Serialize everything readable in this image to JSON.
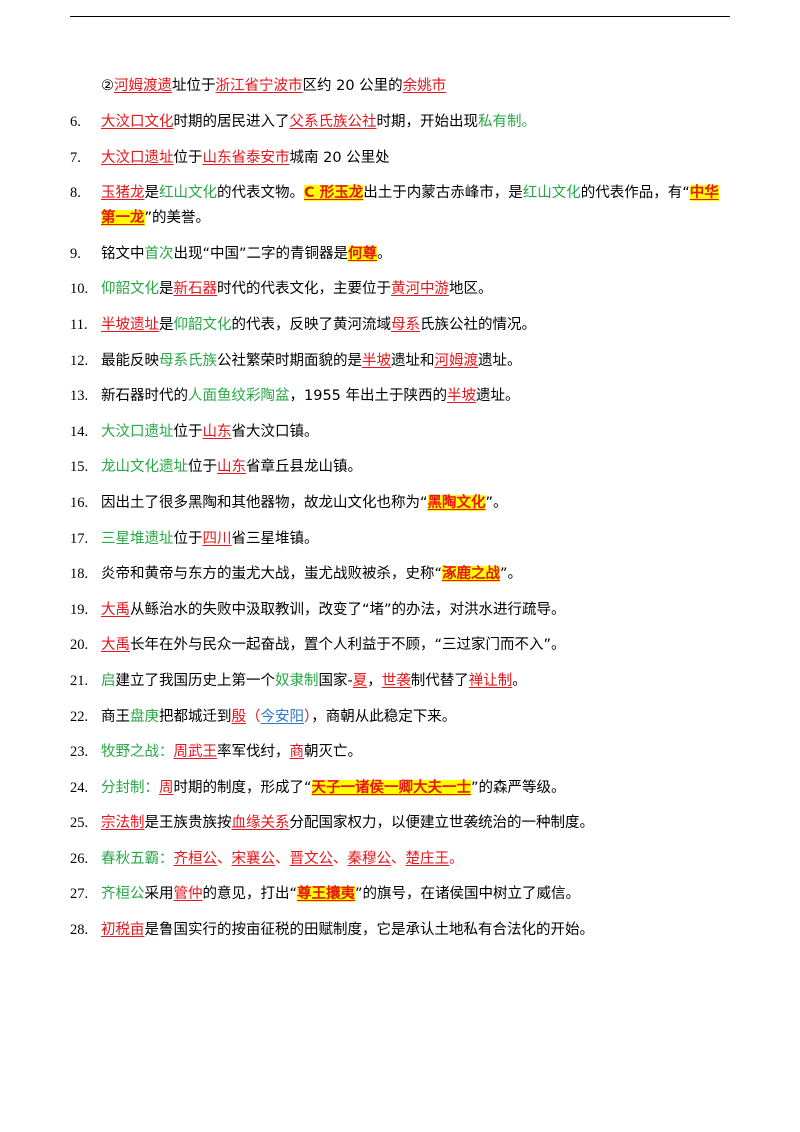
{
  "items": [
    {
      "num": "",
      "segs": [
        {
          "t": "②",
          "s": ""
        },
        {
          "t": "河姆渡遗",
          "s": "ru"
        },
        {
          "t": "址位于",
          "s": ""
        },
        {
          "t": "浙江省宁波市",
          "s": "ru"
        },
        {
          "t": "区约 20 公里的",
          "s": ""
        },
        {
          "t": "余姚市",
          "s": "ru"
        }
      ]
    },
    {
      "num": "6.",
      "segs": [
        {
          "t": "大汶口文化",
          "s": "ru"
        },
        {
          "t": "时期的居民进入了",
          "s": ""
        },
        {
          "t": "父系氏族公社",
          "s": "ru"
        },
        {
          "t": "时期，开始出现",
          "s": ""
        },
        {
          "t": "私有制",
          "s": "g"
        },
        {
          "t": "。",
          "s": "g"
        }
      ]
    },
    {
      "num": "7.",
      "segs": [
        {
          "t": "大汶口遗址",
          "s": "ru"
        },
        {
          "t": "位于",
          "s": ""
        },
        {
          "t": "山东省泰安市",
          "s": "ru"
        },
        {
          "t": "城南 20 公里处",
          "s": ""
        }
      ]
    },
    {
      "num": "8.",
      "wrap": true,
      "segs": [
        {
          "t": "玉猪龙",
          "s": "ru"
        },
        {
          "t": "是",
          "s": ""
        },
        {
          "t": "红山文化",
          "s": "g"
        },
        {
          "t": "的代表文物。",
          "s": ""
        },
        {
          "t": "C 形玉龙",
          "s": "hl"
        },
        {
          "t": "出土于内蒙古赤峰市，是",
          "s": ""
        },
        {
          "t": "红山文化",
          "s": "g"
        },
        {
          "t": "的代表作品，有“",
          "s": ""
        },
        {
          "t": "中华第一龙",
          "s": "hl"
        },
        {
          "t": "”的美誉。",
          "s": ""
        }
      ]
    },
    {
      "num": "9.",
      "segs": [
        {
          "t": "铭文中",
          "s": ""
        },
        {
          "t": "首次",
          "s": "g"
        },
        {
          "t": "出现“中国”二字的青铜器是",
          "s": ""
        },
        {
          "t": "何尊",
          "s": "hl"
        },
        {
          "t": "。",
          "s": ""
        }
      ]
    },
    {
      "num": "10.",
      "segs": [
        {
          "t": "仰韶文化",
          "s": "g"
        },
        {
          "t": "是",
          "s": ""
        },
        {
          "t": "新石器",
          "s": "ru"
        },
        {
          "t": "时代的代表文化，主要位于",
          "s": ""
        },
        {
          "t": "黄河中游",
          "s": "ru"
        },
        {
          "t": "地区。",
          "s": ""
        }
      ]
    },
    {
      "num": "11.",
      "segs": [
        {
          "t": "半坡遗址",
          "s": "ru"
        },
        {
          "t": "是",
          "s": ""
        },
        {
          "t": "仰韶文化",
          "s": "g"
        },
        {
          "t": "的代表，反映了黄河流域",
          "s": ""
        },
        {
          "t": "母系",
          "s": "ru"
        },
        {
          "t": "氏族公社的情况。",
          "s": ""
        }
      ]
    },
    {
      "num": "12.",
      "segs": [
        {
          "t": "最能反映",
          "s": ""
        },
        {
          "t": "母系氏族",
          "s": "g"
        },
        {
          "t": "公社繁荣时期面貌的是",
          "s": ""
        },
        {
          "t": "半坡",
          "s": "ru"
        },
        {
          "t": "遗址和",
          "s": ""
        },
        {
          "t": "河姆渡",
          "s": "ru"
        },
        {
          "t": "遗址。",
          "s": ""
        }
      ]
    },
    {
      "num": "13.",
      "segs": [
        {
          "t": "新石器时代的",
          "s": ""
        },
        {
          "t": "人面鱼纹彩陶盆",
          "s": "g"
        },
        {
          "t": "，1955 年出土于陕西的",
          "s": ""
        },
        {
          "t": "半坡",
          "s": "ru"
        },
        {
          "t": "遗址。",
          "s": ""
        }
      ]
    },
    {
      "num": "14.",
      "segs": [
        {
          "t": "大汶口遗址",
          "s": "g"
        },
        {
          "t": "位于",
          "s": ""
        },
        {
          "t": "山东",
          "s": "ru"
        },
        {
          "t": "省大汶口镇。",
          "s": ""
        }
      ]
    },
    {
      "num": "15.",
      "segs": [
        {
          "t": "龙山文化遗址",
          "s": "g"
        },
        {
          "t": "位于",
          "s": ""
        },
        {
          "t": "山东",
          "s": "ru"
        },
        {
          "t": "省章丘县龙山镇。",
          "s": ""
        }
      ]
    },
    {
      "num": "16.",
      "segs": [
        {
          "t": "因出土了很多黑陶和其他器物，故龙山文化也称为“",
          "s": ""
        },
        {
          "t": "黑陶文化",
          "s": "hl"
        },
        {
          "t": "”。",
          "s": ""
        }
      ]
    },
    {
      "num": "17.",
      "segs": [
        {
          "t": "三星堆遗址",
          "s": "g"
        },
        {
          "t": "位于",
          "s": ""
        },
        {
          "t": "四川",
          "s": "ru"
        },
        {
          "t": "省三星堆镇。",
          "s": ""
        }
      ]
    },
    {
      "num": "18.",
      "segs": [
        {
          "t": "炎帝和黄帝与东方的蚩尤大战，蚩尤战败被杀，史称“",
          "s": ""
        },
        {
          "t": "涿鹿之战",
          "s": "hl"
        },
        {
          "t": "”。",
          "s": ""
        }
      ]
    },
    {
      "num": "19.",
      "segs": [
        {
          "t": "大禹",
          "s": "ru"
        },
        {
          "t": "从鲧治水的失败中汲取教训，改变了“堵”的办法，对洪水进行疏导。",
          "s": ""
        }
      ]
    },
    {
      "num": "20.",
      "segs": [
        {
          "t": "大禹",
          "s": "ru"
        },
        {
          "t": "长年在外与民众一起奋战，置个人利益于不顾，“三过家门而不入”。",
          "s": ""
        }
      ]
    },
    {
      "num": "21.",
      "segs": [
        {
          "t": "启",
          "s": "g"
        },
        {
          "t": "建立了我国历史上第一个",
          "s": ""
        },
        {
          "t": "奴隶制",
          "s": "g"
        },
        {
          "t": "国家-",
          "s": ""
        },
        {
          "t": "夏",
          "s": "ru"
        },
        {
          "t": "，",
          "s": ""
        },
        {
          "t": "世袭",
          "s": "ru"
        },
        {
          "t": "制代替了",
          "s": ""
        },
        {
          "t": "禅让制",
          "s": "ru"
        },
        {
          "t": "。",
          "s": ""
        }
      ]
    },
    {
      "num": "22.",
      "segs": [
        {
          "t": "商王",
          "s": ""
        },
        {
          "t": "盘庚",
          "s": "g"
        },
        {
          "t": "把都城迁到",
          "s": ""
        },
        {
          "t": "殷",
          "s": "ru"
        },
        {
          "t": "（",
          "s": "r"
        },
        {
          "t": "今安阳",
          "s": "bu"
        },
        {
          "t": "）",
          "s": "r"
        },
        {
          "t": "，商朝从此稳定下来。",
          "s": ""
        }
      ]
    },
    {
      "num": "23.",
      "segs": [
        {
          "t": "牧野之战：",
          "s": "g"
        },
        {
          "t": "周武王",
          "s": "ru"
        },
        {
          "t": "率军伐纣，",
          "s": ""
        },
        {
          "t": "商",
          "s": "ru"
        },
        {
          "t": "朝灭亡。",
          "s": ""
        }
      ]
    },
    {
      "num": "24.",
      "segs": [
        {
          "t": "分封制：",
          "s": "g"
        },
        {
          "t": "周",
          "s": "ru"
        },
        {
          "t": "时期的制度，形成了“",
          "s": ""
        },
        {
          "t": "天子一诸侯一卿大夫一士",
          "s": "hl"
        },
        {
          "t": "”的森严等级。",
          "s": ""
        }
      ]
    },
    {
      "num": "25.",
      "segs": [
        {
          "t": "宗法制",
          "s": "ru"
        },
        {
          "t": "是王族贵族按",
          "s": ""
        },
        {
          "t": "血缘关系",
          "s": "ru"
        },
        {
          "t": "分配国家权力，以便建立世袭统治的一种制度。",
          "s": ""
        }
      ]
    },
    {
      "num": "26.",
      "segs": [
        {
          "t": "春秋五霸：",
          "s": "g"
        },
        {
          "t": "齐桓公",
          "s": "ru"
        },
        {
          "t": "、",
          "s": "r"
        },
        {
          "t": "宋襄公",
          "s": "ru"
        },
        {
          "t": "、",
          "s": "r"
        },
        {
          "t": "晋文公",
          "s": "ru"
        },
        {
          "t": "、",
          "s": "r"
        },
        {
          "t": "秦穆公",
          "s": "ru"
        },
        {
          "t": "、",
          "s": "r"
        },
        {
          "t": "楚庄王",
          "s": "ru"
        },
        {
          "t": "。",
          "s": "r"
        }
      ]
    },
    {
      "num": "27.",
      "segs": [
        {
          "t": "齐桓公",
          "s": "g"
        },
        {
          "t": "采用",
          "s": ""
        },
        {
          "t": "管仲",
          "s": "ru"
        },
        {
          "t": "的意见，打出“",
          "s": ""
        },
        {
          "t": "尊王攘夷",
          "s": "hl"
        },
        {
          "t": "”的旗号，在诸侯国中树立了威信。",
          "s": ""
        }
      ]
    },
    {
      "num": "28.",
      "segs": [
        {
          "t": "初税亩",
          "s": "ru"
        },
        {
          "t": "是鲁国实行的按亩征税的田赋制度，它是承认土地私有合法化的开始。",
          "s": ""
        }
      ]
    }
  ]
}
